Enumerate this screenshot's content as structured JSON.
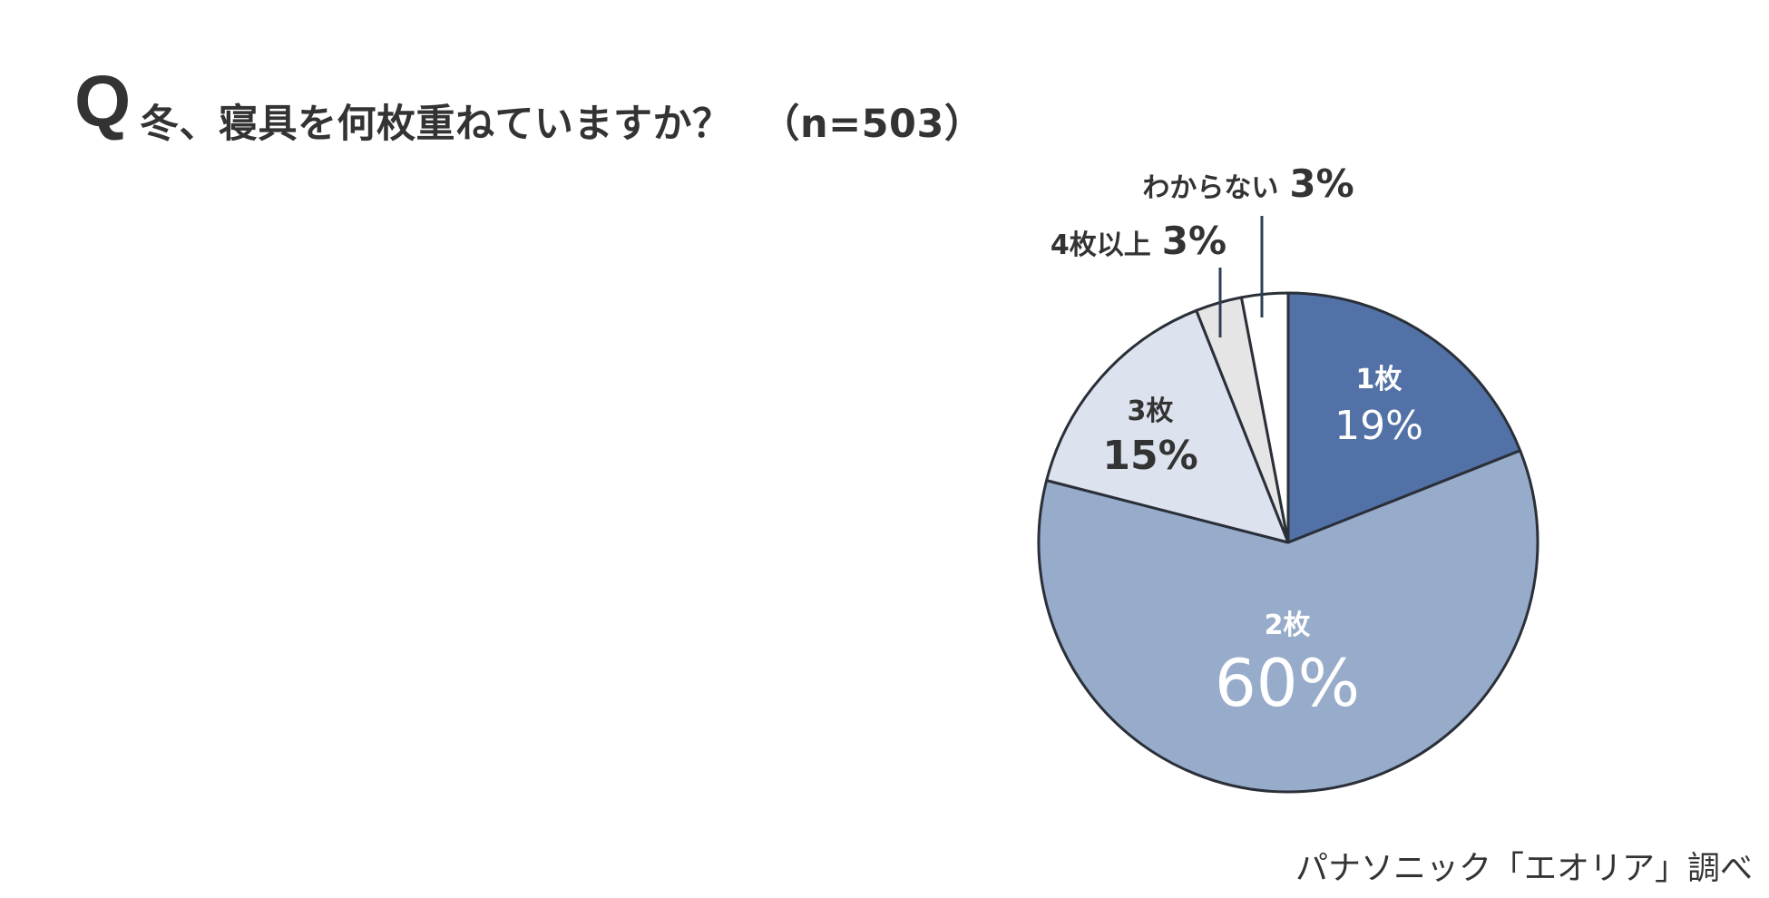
{
  "title": {
    "q_mark": "Q",
    "question": "冬、寝具を何枚重ねていますか？",
    "sample_size": "（n=503）"
  },
  "footer": {
    "source": "パナソニック「エオリア」調べ"
  },
  "colors": {
    "slice_1": "#5272A7",
    "slice_2": "#97ABCA",
    "slice_3": "#DCE2EE",
    "slice_4": "#E5E5E5",
    "slice_5": "#FFFFFF",
    "outline": "#2A2F38",
    "leader": "#2E3F55",
    "text_dark": "#333333",
    "text_light": "#FFFFFF"
  },
  "labels": {
    "s1_cat": "1枚",
    "s1_pct": "19%",
    "s2_cat": "2枚",
    "s2_pct": "60%",
    "s3_cat": "3枚",
    "s3_pct": "15%",
    "s4_cat": "4枚以上",
    "s4_pct": "3%",
    "s5_cat": "わからない",
    "s5_pct": "3%"
  },
  "chart_data": {
    "type": "pie",
    "title": "冬、寝具を何枚重ねていますか？（n=503）",
    "categories": [
      "1枚",
      "2枚",
      "3枚",
      "4枚以上",
      "わからない"
    ],
    "values": [
      19,
      60,
      15,
      3,
      3
    ],
    "unit": "%",
    "start_angle": "12 o'clock",
    "direction": "clockwise",
    "colors": [
      "#5272A7",
      "#97ABCA",
      "#DCE2EE",
      "#E5E5E5",
      "#FFFFFF"
    ],
    "n": 503,
    "source": "パナソニック「エオリア」調べ",
    "legend": "none (direct labels)"
  }
}
